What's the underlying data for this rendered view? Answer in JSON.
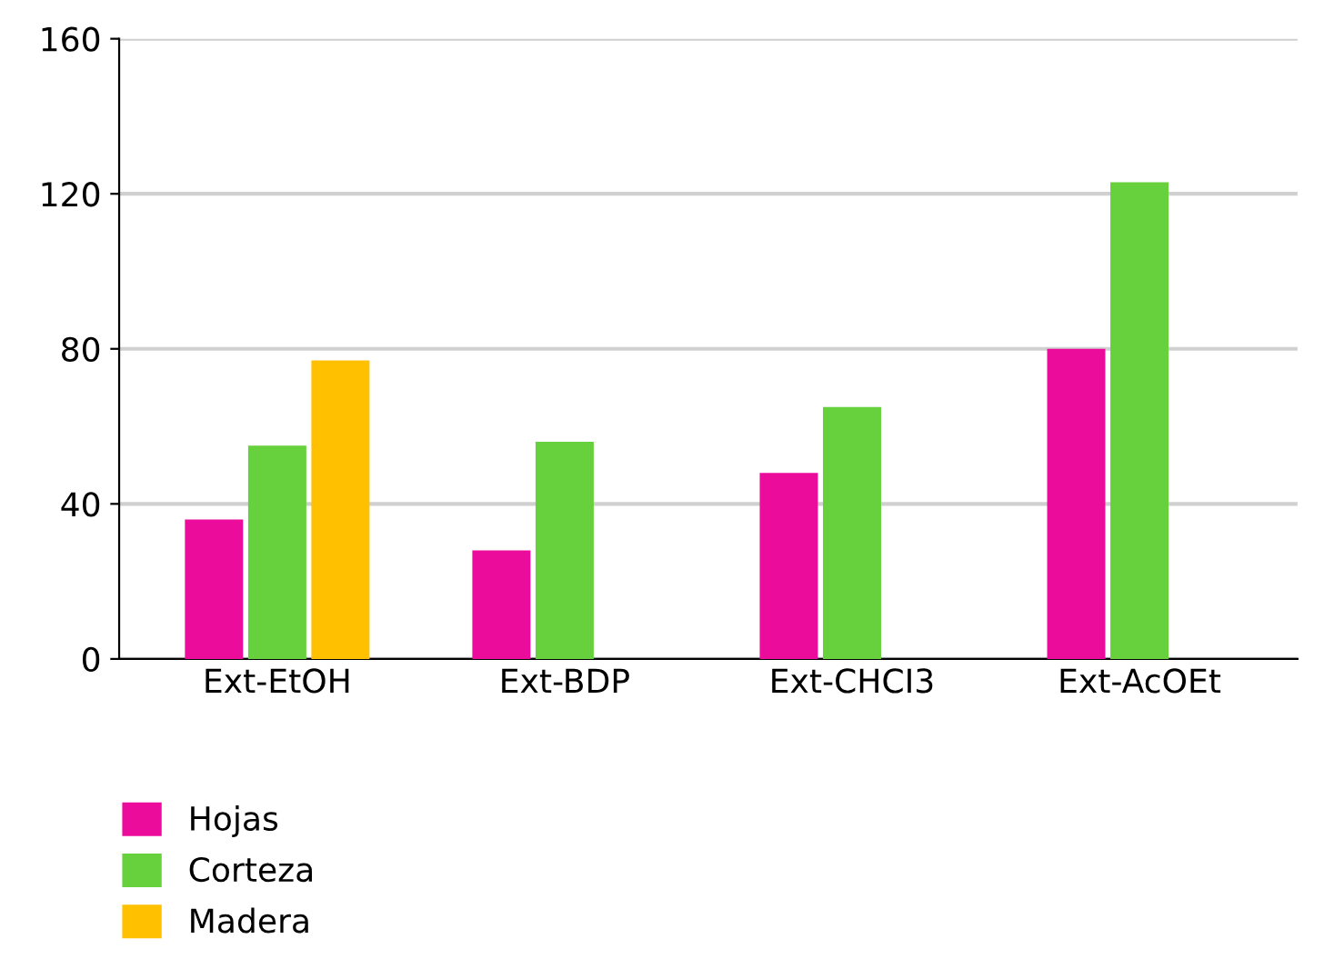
{
  "chart_data": {
    "type": "bar",
    "categories": [
      "Ext-EtOH",
      "Ext-BDP",
      "Ext-CHCI3",
      "Ext-AcOEt"
    ],
    "series": [
      {
        "name": "Hojas",
        "color": "#ec0c9c",
        "values": [
          36,
          28,
          48,
          80
        ]
      },
      {
        "name": "Corteza",
        "color": "#66d13c",
        "values": [
          55,
          56,
          65,
          123
        ]
      },
      {
        "name": "Madera",
        "color": "#ffc000",
        "values": [
          77,
          0,
          0,
          0
        ]
      }
    ],
    "ylim": [
      0,
      160
    ],
    "yticks": [
      0,
      40,
      80,
      120,
      160
    ],
    "grid": "y",
    "legend": "bottom left"
  }
}
